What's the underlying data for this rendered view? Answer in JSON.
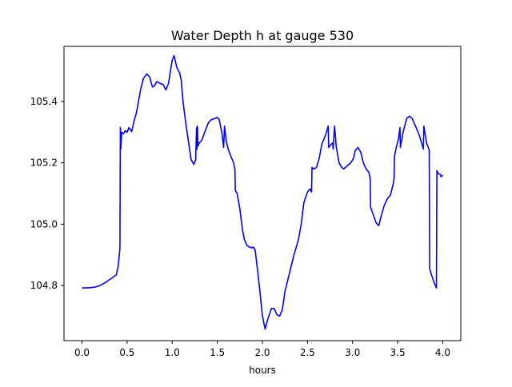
{
  "chart_data": {
    "type": "line",
    "title": "Water Depth h at gauge 530",
    "xlabel": "hours",
    "ylabel": "",
    "xlim": [
      -0.2,
      4.2
    ],
    "ylim": [
      104.62,
      105.58
    ],
    "xticks": [
      0.0,
      0.5,
      1.0,
      1.5,
      2.0,
      2.5,
      3.0,
      3.5,
      4.0
    ],
    "xtick_labels": [
      "0.0",
      "0.5",
      "1.0",
      "1.5",
      "2.0",
      "2.5",
      "3.0",
      "3.5",
      "4.0"
    ],
    "yticks": [
      104.8,
      105.0,
      105.2,
      105.4
    ],
    "ytick_labels": [
      "104.8",
      "105.0",
      "105.2",
      "105.4"
    ],
    "grid": false,
    "legend": "none",
    "series": [
      {
        "color": "#0000ff",
        "points": [
          [
            0.0,
            104.792
          ],
          [
            0.05,
            104.792
          ],
          [
            0.1,
            104.793
          ],
          [
            0.15,
            104.795
          ],
          [
            0.2,
            104.8
          ],
          [
            0.25,
            104.808
          ],
          [
            0.3,
            104.818
          ],
          [
            0.35,
            104.828
          ],
          [
            0.38,
            104.835
          ],
          [
            0.4,
            104.86
          ],
          [
            0.42,
            104.92
          ],
          [
            0.425,
            105.315
          ],
          [
            0.43,
            105.245
          ],
          [
            0.44,
            105.3
          ],
          [
            0.46,
            105.295
          ],
          [
            0.48,
            105.305
          ],
          [
            0.5,
            105.3
          ],
          [
            0.52,
            105.315
          ],
          [
            0.55,
            105.302
          ],
          [
            0.58,
            105.34
          ],
          [
            0.6,
            105.36
          ],
          [
            0.62,
            105.39
          ],
          [
            0.65,
            105.44
          ],
          [
            0.68,
            105.475
          ],
          [
            0.72,
            105.49
          ],
          [
            0.75,
            105.48
          ],
          [
            0.78,
            105.448
          ],
          [
            0.8,
            105.45
          ],
          [
            0.83,
            105.465
          ],
          [
            0.86,
            105.46
          ],
          [
            0.9,
            105.455
          ],
          [
            0.93,
            105.438
          ],
          [
            0.96,
            105.46
          ],
          [
            0.98,
            105.5
          ],
          [
            1.0,
            105.535
          ],
          [
            1.02,
            105.55
          ],
          [
            1.05,
            105.512
          ],
          [
            1.08,
            105.495
          ],
          [
            1.1,
            105.47
          ],
          [
            1.12,
            105.4
          ],
          [
            1.15,
            105.33
          ],
          [
            1.18,
            105.27
          ],
          [
            1.21,
            105.21
          ],
          [
            1.24,
            105.195
          ],
          [
            1.26,
            105.21
          ],
          [
            1.27,
            105.315
          ],
          [
            1.275,
            105.245
          ],
          [
            1.28,
            105.32
          ],
          [
            1.285,
            105.255
          ],
          [
            1.3,
            105.265
          ],
          [
            1.33,
            105.275
          ],
          [
            1.36,
            105.3
          ],
          [
            1.4,
            105.33
          ],
          [
            1.43,
            105.34
          ],
          [
            1.47,
            105.345
          ],
          [
            1.5,
            105.348
          ],
          [
            1.52,
            105.342
          ],
          [
            1.55,
            105.3
          ],
          [
            1.57,
            105.25
          ],
          [
            1.58,
            105.32
          ],
          [
            1.6,
            105.27
          ],
          [
            1.62,
            105.245
          ],
          [
            1.65,
            105.222
          ],
          [
            1.68,
            105.2
          ],
          [
            1.695,
            105.18
          ],
          [
            1.7,
            105.11
          ],
          [
            1.72,
            105.1
          ],
          [
            1.75,
            105.05
          ],
          [
            1.78,
            104.98
          ],
          [
            1.8,
            104.95
          ],
          [
            1.83,
            104.93
          ],
          [
            1.87,
            104.923
          ],
          [
            1.9,
            104.925
          ],
          [
            1.92,
            104.915
          ],
          [
            1.95,
            104.84
          ],
          [
            1.98,
            104.76
          ],
          [
            2.0,
            104.7
          ],
          [
            2.03,
            104.658
          ],
          [
            2.06,
            104.69
          ],
          [
            2.1,
            104.725
          ],
          [
            2.13,
            104.725
          ],
          [
            2.16,
            104.705
          ],
          [
            2.19,
            104.7
          ],
          [
            2.22,
            104.72
          ],
          [
            2.25,
            104.78
          ],
          [
            2.3,
            104.84
          ],
          [
            2.35,
            104.9
          ],
          [
            2.4,
            104.95
          ],
          [
            2.43,
            105.0
          ],
          [
            2.46,
            105.07
          ],
          [
            2.5,
            105.105
          ],
          [
            2.53,
            105.115
          ],
          [
            2.545,
            105.105
          ],
          [
            2.55,
            105.185
          ],
          [
            2.57,
            105.18
          ],
          [
            2.6,
            105.185
          ],
          [
            2.63,
            105.215
          ],
          [
            2.66,
            105.262
          ],
          [
            2.7,
            105.29
          ],
          [
            2.73,
            105.32
          ],
          [
            2.735,
            105.25
          ],
          [
            2.76,
            105.26
          ],
          [
            2.78,
            105.265
          ],
          [
            2.785,
            105.245
          ],
          [
            2.8,
            105.32
          ],
          [
            2.82,
            105.25
          ],
          [
            2.85,
            105.2
          ],
          [
            2.88,
            105.185
          ],
          [
            2.9,
            105.18
          ],
          [
            2.94,
            105.19
          ],
          [
            2.98,
            105.2
          ],
          [
            3.01,
            105.215
          ],
          [
            3.03,
            105.24
          ],
          [
            3.06,
            105.25
          ],
          [
            3.09,
            105.235
          ],
          [
            3.12,
            105.2
          ],
          [
            3.15,
            105.18
          ],
          [
            3.18,
            105.17
          ],
          [
            3.195,
            105.15
          ],
          [
            3.2,
            105.055
          ],
          [
            3.23,
            105.03
          ],
          [
            3.26,
            105.005
          ],
          [
            3.29,
            104.995
          ],
          [
            3.32,
            105.03
          ],
          [
            3.35,
            105.06
          ],
          [
            3.38,
            105.08
          ],
          [
            3.42,
            105.095
          ],
          [
            3.45,
            105.13
          ],
          [
            3.46,
            105.15
          ],
          [
            3.465,
            105.22
          ],
          [
            3.48,
            105.245
          ],
          [
            3.51,
            105.28
          ],
          [
            3.525,
            105.315
          ],
          [
            3.53,
            105.25
          ],
          [
            3.56,
            105.3
          ],
          [
            3.6,
            105.345
          ],
          [
            3.63,
            105.352
          ],
          [
            3.66,
            105.345
          ],
          [
            3.7,
            105.318
          ],
          [
            3.74,
            105.29
          ],
          [
            3.77,
            105.26
          ],
          [
            3.785,
            105.245
          ],
          [
            3.79,
            105.32
          ],
          [
            3.82,
            105.265
          ],
          [
            3.84,
            105.25
          ],
          [
            3.85,
            105.24
          ],
          [
            3.855,
            104.855
          ],
          [
            3.88,
            104.83
          ],
          [
            3.91,
            104.805
          ],
          [
            3.93,
            104.792
          ],
          [
            3.935,
            105.175
          ],
          [
            3.95,
            105.165
          ],
          [
            3.97,
            105.163
          ],
          [
            3.98,
            105.155
          ],
          [
            4.0,
            105.16
          ]
        ]
      }
    ]
  }
}
